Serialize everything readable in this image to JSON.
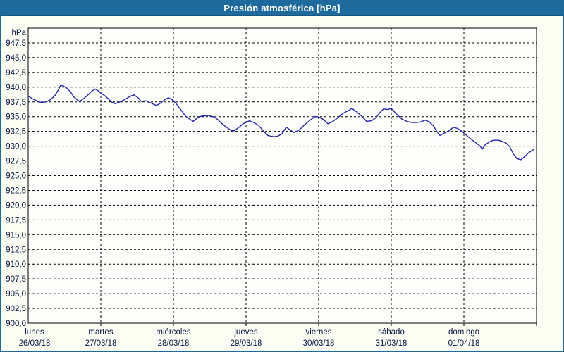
{
  "window": {
    "title": "Presión atmosférica [hPa]"
  },
  "colors": {
    "titlebar": "#1f6a9d",
    "outer_border": "#1f6a9d",
    "background": "#fcfef4",
    "plot_background": "#fefefc",
    "grid": "#000000",
    "axis_text": "#041240",
    "line": "#2525ad"
  },
  "chart_data": {
    "type": "line",
    "title": "Presión atmosférica [hPa]",
    "ylabel": "hPa",
    "xlabel": "",
    "ylim": [
      900,
      950
    ],
    "ytick_step": 2.5,
    "ytick_labels": [
      "947,5",
      "945,0",
      "942,5",
      "940,0",
      "937,5",
      "935,0",
      "932,5",
      "930,0",
      "927,5",
      "925,0",
      "922,5",
      "920,0",
      "917,5",
      "915,0",
      "912,5",
      "910,0",
      "907,5",
      "905,0",
      "902,5",
      "900,0"
    ],
    "grid": "dashed",
    "legend_position": "none",
    "x_axis": {
      "span_days": 7,
      "days": [
        {
          "name": "lunes",
          "date": "26/03/18"
        },
        {
          "name": "martes",
          "date": "27/03/18"
        },
        {
          "name": "miércoles",
          "date": "28/03/18"
        },
        {
          "name": "jueves",
          "date": "29/03/18"
        },
        {
          "name": "viernes",
          "date": "30/03/18"
        },
        {
          "name": "sábado",
          "date": "31/03/18"
        },
        {
          "name": "domingo",
          "date": "01/04/18"
        }
      ]
    },
    "series": [
      {
        "name": "Presión atmosférica",
        "unit": "hPa",
        "color": "#2525ad",
        "points": [
          [
            0.0,
            938.5
          ],
          [
            0.049,
            938.1
          ],
          [
            0.117,
            937.7
          ],
          [
            0.175,
            937.4
          ],
          [
            0.243,
            937.5
          ],
          [
            0.311,
            937.9
          ],
          [
            0.369,
            938.6
          ],
          [
            0.417,
            939.6
          ],
          [
            0.447,
            940.3
          ],
          [
            0.485,
            940.2
          ],
          [
            0.534,
            939.8
          ],
          [
            0.583,
            939.2
          ],
          [
            0.631,
            938.3
          ],
          [
            0.68,
            937.8
          ],
          [
            0.709,
            937.6
          ],
          [
            0.757,
            938.0
          ],
          [
            0.816,
            938.6
          ],
          [
            0.874,
            939.3
          ],
          [
            0.922,
            939.7
          ],
          [
            0.961,
            939.4
          ],
          [
            1.0,
            939.0
          ],
          [
            1.049,
            938.6
          ],
          [
            1.097,
            938.1
          ],
          [
            1.146,
            937.5
          ],
          [
            1.194,
            937.2
          ],
          [
            1.262,
            937.5
          ],
          [
            1.33,
            937.9
          ],
          [
            1.398,
            938.4
          ],
          [
            1.456,
            938.7
          ],
          [
            1.515,
            938.2
          ],
          [
            1.553,
            937.6
          ],
          [
            1.621,
            937.7
          ],
          [
            1.689,
            937.3
          ],
          [
            1.767,
            936.9
          ],
          [
            1.825,
            937.3
          ],
          [
            1.883,
            937.9
          ],
          [
            1.932,
            938.2
          ],
          [
            1.99,
            937.8
          ],
          [
            2.039,
            937.2
          ],
          [
            2.107,
            936.1
          ],
          [
            2.165,
            935.1
          ],
          [
            2.233,
            934.5
          ],
          [
            2.272,
            934.2
          ],
          [
            2.33,
            934.8
          ],
          [
            2.388,
            935.1
          ],
          [
            2.476,
            935.2
          ],
          [
            2.544,
            935.0
          ],
          [
            2.602,
            934.6
          ],
          [
            2.66,
            933.9
          ],
          [
            2.718,
            933.3
          ],
          [
            2.786,
            932.7
          ],
          [
            2.835,
            932.6
          ],
          [
            2.903,
            933.2
          ],
          [
            2.961,
            933.8
          ],
          [
            3.01,
            934.1
          ],
          [
            3.049,
            934.3
          ],
          [
            3.107,
            934.0
          ],
          [
            3.175,
            933.5
          ],
          [
            3.243,
            932.5
          ],
          [
            3.301,
            931.8
          ],
          [
            3.379,
            931.6
          ],
          [
            3.437,
            931.7
          ],
          [
            3.495,
            932.1
          ],
          [
            3.553,
            933.2
          ],
          [
            3.602,
            932.8
          ],
          [
            3.66,
            932.3
          ],
          [
            3.728,
            932.7
          ],
          [
            3.806,
            933.6
          ],
          [
            3.883,
            934.4
          ],
          [
            3.951,
            935.0
          ],
          [
            4.01,
            934.9
          ],
          [
            4.068,
            934.5
          ],
          [
            4.126,
            933.8
          ],
          [
            4.184,
            934.1
          ],
          [
            4.252,
            934.7
          ],
          [
            4.34,
            935.6
          ],
          [
            4.408,
            936.0
          ],
          [
            4.456,
            936.4
          ],
          [
            4.524,
            935.8
          ],
          [
            4.592,
            935.1
          ],
          [
            4.66,
            934.2
          ],
          [
            4.728,
            934.3
          ],
          [
            4.786,
            934.8
          ],
          [
            4.845,
            935.7
          ],
          [
            4.893,
            936.3
          ],
          [
            4.951,
            936.2
          ],
          [
            5.0,
            936.4
          ],
          [
            5.068,
            935.5
          ],
          [
            5.146,
            934.6
          ],
          [
            5.214,
            934.2
          ],
          [
            5.282,
            934.0
          ],
          [
            5.35,
            934.0
          ],
          [
            5.408,
            934.1
          ],
          [
            5.466,
            934.4
          ],
          [
            5.524,
            934.1
          ],
          [
            5.583,
            933.4
          ],
          [
            5.631,
            932.4
          ],
          [
            5.67,
            931.8
          ],
          [
            5.728,
            932.2
          ],
          [
            5.796,
            932.6
          ],
          [
            5.854,
            933.2
          ],
          [
            5.913,
            933.0
          ],
          [
            5.981,
            932.4
          ],
          [
            6.049,
            931.7
          ],
          [
            6.117,
            931.0
          ],
          [
            6.184,
            930.4
          ],
          [
            6.223,
            930.0
          ],
          [
            6.252,
            929.5
          ],
          [
            6.291,
            930.2
          ],
          [
            6.35,
            930.7
          ],
          [
            6.408,
            931.0
          ],
          [
            6.476,
            931.0
          ],
          [
            6.534,
            930.8
          ],
          [
            6.583,
            930.5
          ],
          [
            6.631,
            929.9
          ],
          [
            6.68,
            928.7
          ],
          [
            6.728,
            927.9
          ],
          [
            6.786,
            927.7
          ],
          [
            6.845,
            928.3
          ],
          [
            6.893,
            928.9
          ],
          [
            6.942,
            929.3
          ],
          [
            6.961,
            929.4
          ]
        ]
      }
    ]
  }
}
